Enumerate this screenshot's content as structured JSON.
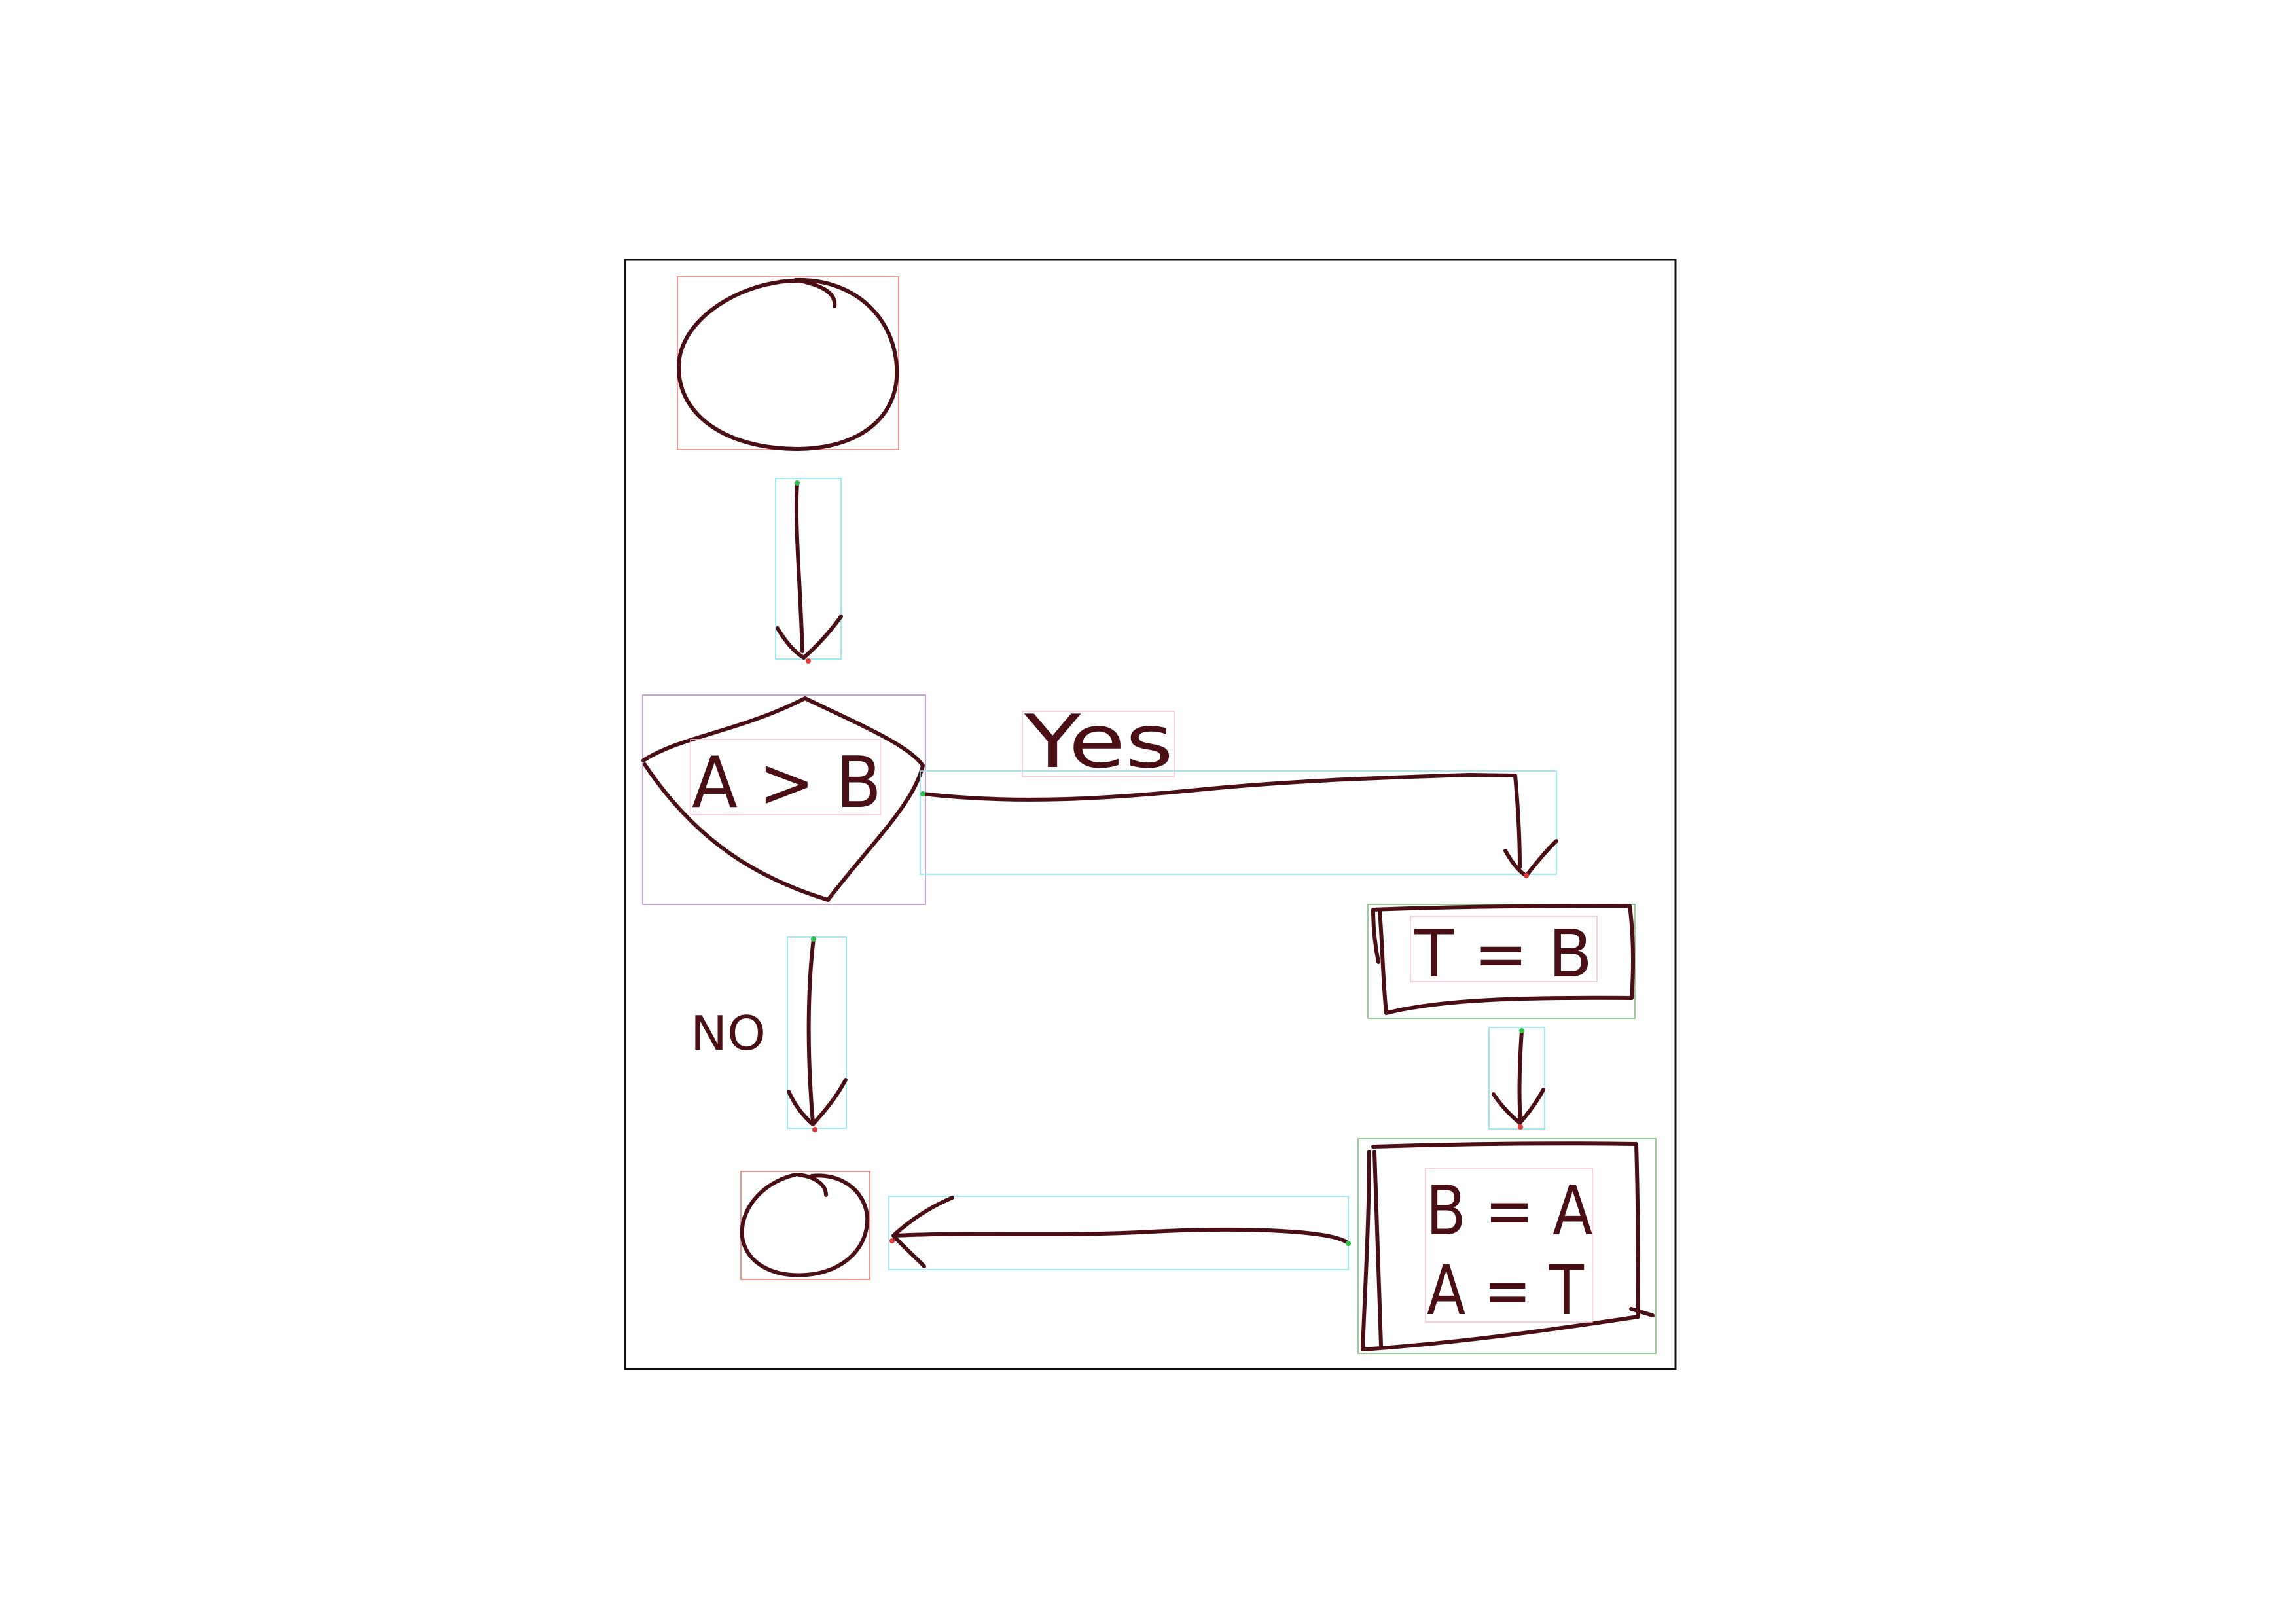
{
  "diagram": {
    "type": "flowchart",
    "style": "hand-drawn",
    "colors": {
      "ink": "#4a0f14",
      "frame": "#111111",
      "terminal_box": "#f07a7a",
      "decision_box": "#b88ad6",
      "process_box": "#7cc27c",
      "arrow_box": "#86e6ee",
      "text_box": "#f5c6d6"
    },
    "nodes": [
      {
        "id": "start",
        "shape": "terminal",
        "label": ""
      },
      {
        "id": "decision",
        "shape": "decision",
        "label": "A > B"
      },
      {
        "id": "process1",
        "shape": "process",
        "label": "T = B"
      },
      {
        "id": "process2",
        "shape": "process",
        "label_lines": [
          "B = A",
          "A = T"
        ]
      },
      {
        "id": "end",
        "shape": "terminal",
        "label": ""
      }
    ],
    "edges": [
      {
        "from": "start",
        "to": "decision",
        "label": ""
      },
      {
        "from": "decision",
        "to": "process1",
        "label": "Yes"
      },
      {
        "from": "decision",
        "to": "end",
        "label": "NO"
      },
      {
        "from": "process1",
        "to": "process2",
        "label": ""
      },
      {
        "from": "process2",
        "to": "end",
        "label": ""
      }
    ]
  }
}
